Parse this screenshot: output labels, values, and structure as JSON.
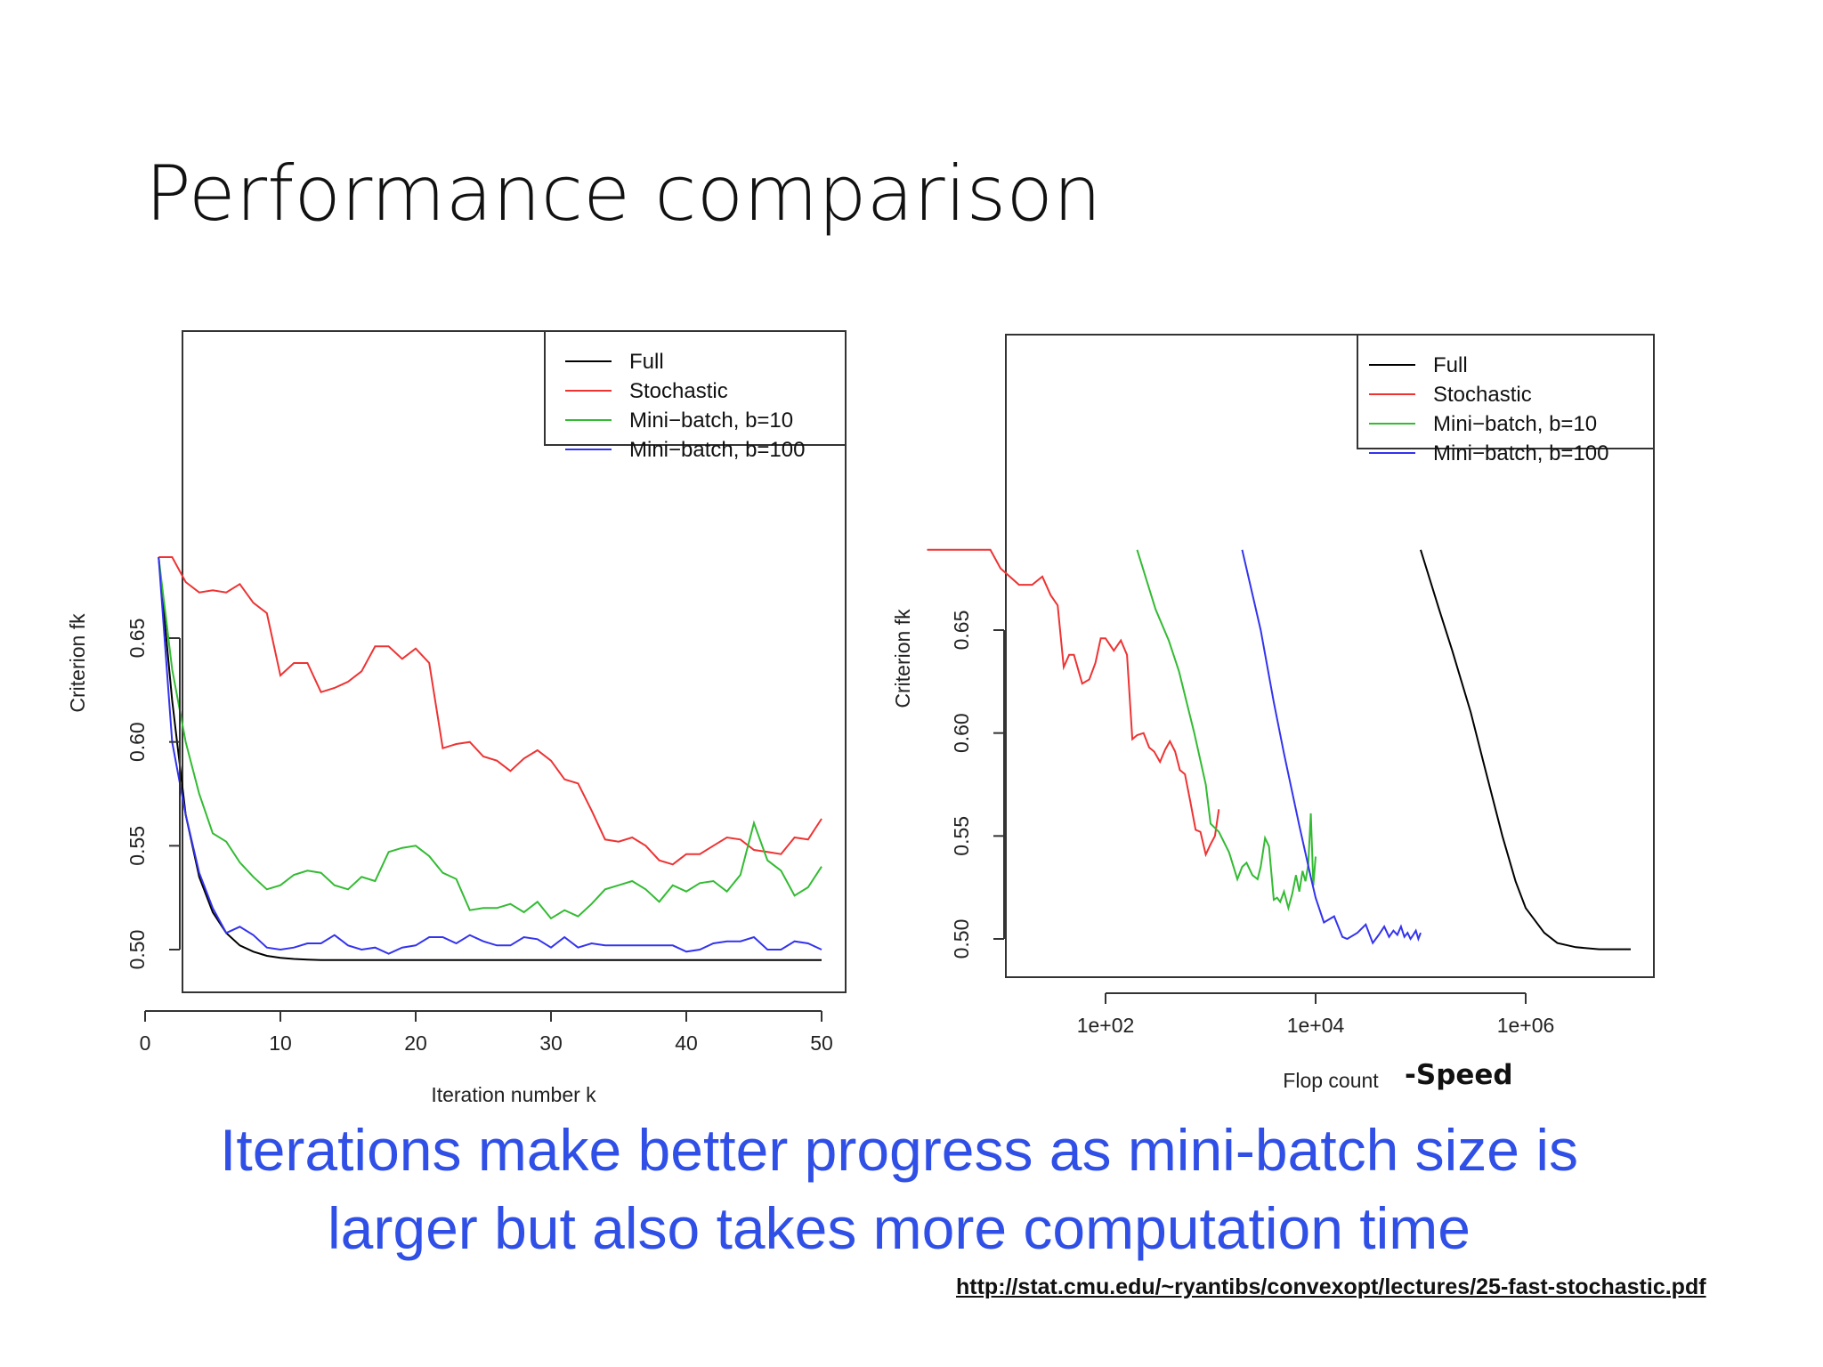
{
  "slide": {
    "title": "Performance comparison",
    "speed_note": "-Speed",
    "caption_line1": "Iterations make better progress as mini-batch size is",
    "caption_line2": "larger but also takes more computation time",
    "source_link": "http://stat.cmu.edu/~ryantibs/convexopt/lectures/25-fast-stochastic.pdf"
  },
  "colors": {
    "full": "#000000",
    "stochastic": "#ee3333",
    "minibatch10": "#33bb33",
    "minibatch100": "#3333ee",
    "caption": "#2f4fe6"
  },
  "chart_data": [
    {
      "type": "line",
      "xlabel": "Iteration number k",
      "ylabel": "Criterion fk",
      "xlim": [
        0,
        50
      ],
      "ylim": [
        0.49,
        0.69
      ],
      "xticks": [
        0,
        10,
        20,
        30,
        40,
        50
      ],
      "yticks": [
        0.5,
        0.55,
        0.6,
        0.65
      ],
      "grid": false,
      "legend_position": "top-right",
      "x": [
        1,
        2,
        3,
        4,
        5,
        6,
        7,
        8,
        9,
        10,
        11,
        12,
        13,
        14,
        15,
        16,
        17,
        18,
        19,
        20,
        21,
        22,
        23,
        24,
        25,
        26,
        27,
        28,
        29,
        30,
        31,
        32,
        33,
        34,
        35,
        36,
        37,
        38,
        39,
        40,
        41,
        42,
        43,
        44,
        45,
        46,
        47,
        48,
        49,
        50
      ],
      "series": [
        {
          "name": "Full",
          "color_key": "full",
          "values": [
            0.689,
            0.62,
            0.565,
            0.535,
            0.518,
            0.508,
            0.502,
            0.499,
            0.497,
            0.496,
            0.4955,
            0.4952,
            0.495,
            0.495,
            0.495,
            0.495,
            0.495,
            0.495,
            0.495,
            0.495,
            0.495,
            0.495,
            0.495,
            0.495,
            0.495,
            0.495,
            0.495,
            0.495,
            0.495,
            0.495,
            0.495,
            0.495,
            0.495,
            0.495,
            0.495,
            0.495,
            0.495,
            0.495,
            0.495,
            0.495,
            0.495,
            0.495,
            0.495,
            0.495,
            0.495,
            0.495,
            0.495,
            0.495,
            0.495,
            0.495
          ]
        },
        {
          "name": "Stochastic",
          "color_key": "stochastic",
          "values": [
            0.689,
            0.689,
            0.677,
            0.672,
            0.673,
            0.672,
            0.676,
            0.667,
            0.662,
            0.632,
            0.638,
            0.638,
            0.624,
            0.626,
            0.629,
            0.634,
            0.646,
            0.646,
            0.64,
            0.645,
            0.638,
            0.597,
            0.599,
            0.6,
            0.593,
            0.591,
            0.586,
            0.592,
            0.596,
            0.591,
            0.582,
            0.58,
            0.567,
            0.553,
            0.552,
            0.554,
            0.55,
            0.543,
            0.541,
            0.546,
            0.546,
            0.55,
            0.554,
            0.553,
            0.548,
            0.547,
            0.546,
            0.554,
            0.553,
            0.563
          ]
        },
        {
          "name": "Mini−batch, b=10",
          "color_key": "minibatch10",
          "values": [
            0.689,
            0.635,
            0.6,
            0.575,
            0.556,
            0.552,
            0.542,
            0.535,
            0.529,
            0.531,
            0.536,
            0.538,
            0.537,
            0.531,
            0.529,
            0.535,
            0.533,
            0.547,
            0.549,
            0.55,
            0.545,
            0.537,
            0.534,
            0.519,
            0.52,
            0.52,
            0.522,
            0.518,
            0.523,
            0.515,
            0.519,
            0.516,
            0.522,
            0.529,
            0.531,
            0.533,
            0.529,
            0.523,
            0.531,
            0.528,
            0.532,
            0.533,
            0.528,
            0.536,
            0.561,
            0.543,
            0.538,
            0.526,
            0.53,
            0.54
          ]
        },
        {
          "name": "Mini−batch, b=100",
          "color_key": "minibatch100",
          "values": [
            0.689,
            0.6,
            0.565,
            0.537,
            0.52,
            0.508,
            0.511,
            0.507,
            0.501,
            0.5,
            0.501,
            0.503,
            0.503,
            0.507,
            0.502,
            0.5,
            0.501,
            0.498,
            0.501,
            0.502,
            0.506,
            0.506,
            0.503,
            0.507,
            0.504,
            0.502,
            0.502,
            0.506,
            0.505,
            0.501,
            0.506,
            0.501,
            0.503,
            0.502,
            0.502,
            0.502,
            0.502,
            0.502,
            0.502,
            0.499,
            0.5,
            0.503,
            0.504,
            0.504,
            0.506,
            0.5,
            0.5,
            0.504,
            0.503,
            0.5
          ]
        }
      ],
      "x_tick_labels": [
        "0",
        "10",
        "20",
        "30",
        "40",
        "50"
      ],
      "y_tick_labels": [
        "0.50",
        "0.55",
        "0.60",
        "0.65"
      ]
    },
    {
      "type": "line",
      "xlabel": "Flop count",
      "ylabel": "Criterion fk",
      "x_scale": "log",
      "xlim": [
        1,
        10000000
      ],
      "ylim": [
        0.49,
        0.69
      ],
      "x_tick_labels": [
        "1e+02",
        "1e+04",
        "1e+06"
      ],
      "y_tick_labels": [
        "0.50",
        "0.55",
        "0.60",
        "0.65"
      ],
      "xticks": [
        100,
        10000,
        1000000
      ],
      "yticks": [
        0.5,
        0.55,
        0.6,
        0.65
      ],
      "grid": false,
      "legend_position": "top-right",
      "series": [
        {
          "name": "Full",
          "color_key": "full",
          "x": [
            100000,
            150000,
            200000,
            300000,
            400000,
            600000,
            800000,
            1000000,
            1500000,
            2000000,
            3000000,
            5000000,
            10000000
          ],
          "y": [
            0.689,
            0.66,
            0.64,
            0.61,
            0.585,
            0.55,
            0.528,
            0.515,
            0.503,
            0.498,
            0.496,
            0.495,
            0.495
          ]
        },
        {
          "name": "Stochastic",
          "color_key": "stochastic",
          "x": [
            2,
            3,
            4,
            5,
            6,
            8,
            10,
            15,
            20,
            25,
            30,
            35,
            40,
            45,
            50,
            60,
            70,
            80,
            90,
            100,
            120,
            140,
            160,
            180,
            200,
            230,
            260,
            290,
            330,
            370,
            410,
            460,
            510,
            570,
            640,
            720,
            800,
            900,
            1000,
            1100,
            1200
          ],
          "y": [
            0.689,
            0.689,
            0.689,
            0.689,
            0.689,
            0.689,
            0.68,
            0.672,
            0.672,
            0.676,
            0.667,
            0.662,
            0.632,
            0.638,
            0.638,
            0.624,
            0.626,
            0.634,
            0.646,
            0.646,
            0.64,
            0.645,
            0.638,
            0.597,
            0.599,
            0.6,
            0.593,
            0.591,
            0.586,
            0.592,
            0.596,
            0.591,
            0.582,
            0.58,
            0.567,
            0.553,
            0.552,
            0.541,
            0.546,
            0.55,
            0.563
          ]
        },
        {
          "name": "Mini−batch, b=10",
          "color_key": "minibatch10",
          "x": [
            200,
            300,
            400,
            500,
            700,
            900,
            1000,
            1200,
            1500,
            1800,
            2000,
            2200,
            2500,
            2800,
            3000,
            3300,
            3600,
            4000,
            4300,
            4600,
            5000,
            5500,
            6000,
            6500,
            7000,
            7500,
            8000,
            8500,
            9000,
            9500,
            10000
          ],
          "y": [
            0.689,
            0.66,
            0.645,
            0.63,
            0.6,
            0.575,
            0.556,
            0.552,
            0.542,
            0.529,
            0.535,
            0.537,
            0.531,
            0.529,
            0.535,
            0.549,
            0.545,
            0.519,
            0.52,
            0.518,
            0.523,
            0.515,
            0.522,
            0.531,
            0.523,
            0.533,
            0.528,
            0.536,
            0.561,
            0.526,
            0.54
          ]
        },
        {
          "name": "Mini−batch, b=100",
          "color_key": "minibatch100",
          "x": [
            2000,
            3000,
            4000,
            5000,
            7000,
            9000,
            10000,
            12000,
            15000,
            18000,
            20000,
            25000,
            30000,
            35000,
            40000,
            45000,
            50000,
            55000,
            60000,
            65000,
            70000,
            75000,
            80000,
            85000,
            90000,
            95000,
            100000
          ],
          "y": [
            0.689,
            0.65,
            0.615,
            0.59,
            0.555,
            0.53,
            0.52,
            0.508,
            0.511,
            0.501,
            0.5,
            0.503,
            0.507,
            0.498,
            0.502,
            0.506,
            0.501,
            0.504,
            0.502,
            0.506,
            0.501,
            0.503,
            0.5,
            0.502,
            0.504,
            0.5,
            0.503
          ]
        }
      ]
    }
  ]
}
